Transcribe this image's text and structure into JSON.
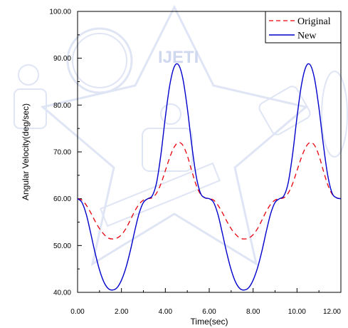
{
  "chart_data": {
    "type": "line",
    "xlabel": "Time(sec)",
    "ylabel": "Angular Velocity(deg/sec)",
    "xlim": [
      0,
      12
    ],
    "ylim": [
      40,
      100
    ],
    "x_ticks": [
      "0.00",
      "2.00",
      "4.00",
      "6.00",
      "8.00",
      "10.00",
      "12.00"
    ],
    "y_ticks": [
      "40.00",
      "50.00",
      "60.00",
      "70.00",
      "80.00",
      "90.00",
      "100.00"
    ],
    "grid": false,
    "legend_position": "top-right",
    "series": [
      {
        "name": "Original",
        "color": "#e8000b",
        "style": "dashed",
        "x": [
          0,
          0.2,
          0.4,
          0.6,
          0.8,
          1.0,
          1.2,
          1.4,
          1.6,
          1.8,
          2.0,
          2.2,
          2.4,
          2.6,
          2.8,
          3.0,
          3.2,
          3.4,
          3.6,
          3.8,
          4.0,
          4.2,
          4.4,
          4.6,
          4.8,
          5.0,
          5.2,
          5.4,
          5.6,
          5.8,
          6.0,
          6.2,
          6.4,
          6.6,
          6.8,
          7.0,
          7.2,
          7.4,
          7.6,
          7.8,
          8.0,
          8.2,
          8.4,
          8.6,
          8.8,
          9.0,
          9.2,
          9.4,
          9.6,
          9.8,
          10.0,
          10.2,
          10.4,
          10.6,
          10.8,
          11.0,
          11.2,
          11.4,
          11.6,
          11.8,
          12.0
        ],
        "y": [
          60.0,
          59.7,
          58.6,
          57.0,
          55.2,
          53.6,
          52.4,
          51.6,
          51.4,
          51.6,
          52.3,
          53.6,
          55.4,
          57.3,
          58.8,
          59.7,
          60.0,
          60.2,
          61.2,
          63.2,
          66.0,
          68.8,
          71.0,
          72.0,
          71.4,
          69.2,
          66.0,
          63.0,
          61.0,
          60.2,
          60.0,
          59.7,
          58.6,
          57.0,
          55.2,
          53.6,
          52.4,
          51.6,
          51.4,
          51.6,
          52.3,
          53.6,
          55.4,
          57.3,
          58.8,
          59.7,
          60.0,
          60.2,
          61.2,
          63.2,
          66.0,
          68.8,
          71.0,
          72.0,
          71.4,
          69.2,
          66.0,
          63.0,
          61.0,
          60.2,
          60.0
        ]
      },
      {
        "name": "New",
        "color": "#0000cc",
        "style": "solid",
        "x": [
          0,
          0.2,
          0.4,
          0.6,
          0.8,
          1.0,
          1.2,
          1.4,
          1.6,
          1.8,
          2.0,
          2.2,
          2.4,
          2.6,
          2.8,
          3.0,
          3.2,
          3.4,
          3.6,
          3.8,
          4.0,
          4.2,
          4.4,
          4.6,
          4.8,
          5.0,
          5.2,
          5.4,
          5.6,
          5.8,
          6.0,
          6.2,
          6.4,
          6.6,
          6.8,
          7.0,
          7.2,
          7.4,
          7.6,
          7.8,
          8.0,
          8.2,
          8.4,
          8.6,
          8.8,
          9.0,
          9.2,
          9.4,
          9.6,
          9.8,
          10.0,
          10.2,
          10.4,
          10.6,
          10.8,
          11.0,
          11.2,
          11.4,
          11.6,
          11.8,
          12.0
        ],
        "y": [
          60.0,
          59.2,
          56.6,
          52.6,
          48.4,
          44.8,
          42.2,
          40.8,
          40.5,
          41.0,
          42.6,
          45.2,
          48.8,
          53.0,
          56.8,
          59.2,
          60.0,
          60.6,
          63.4,
          69.5,
          77.4,
          84.2,
          88.1,
          88.6,
          85.6,
          79.4,
          71.6,
          65.0,
          61.2,
          60.2,
          60.0,
          59.2,
          56.6,
          52.6,
          48.4,
          44.8,
          42.2,
          40.8,
          40.5,
          41.0,
          42.6,
          45.2,
          48.8,
          53.0,
          56.8,
          59.2,
          60.0,
          60.6,
          63.4,
          69.5,
          77.4,
          84.2,
          88.1,
          88.6,
          85.6,
          79.4,
          71.6,
          65.0,
          61.2,
          60.2,
          60.0
        ]
      }
    ]
  },
  "watermark": {
    "text": "IJETI",
    "color": "#cfd8ef"
  }
}
